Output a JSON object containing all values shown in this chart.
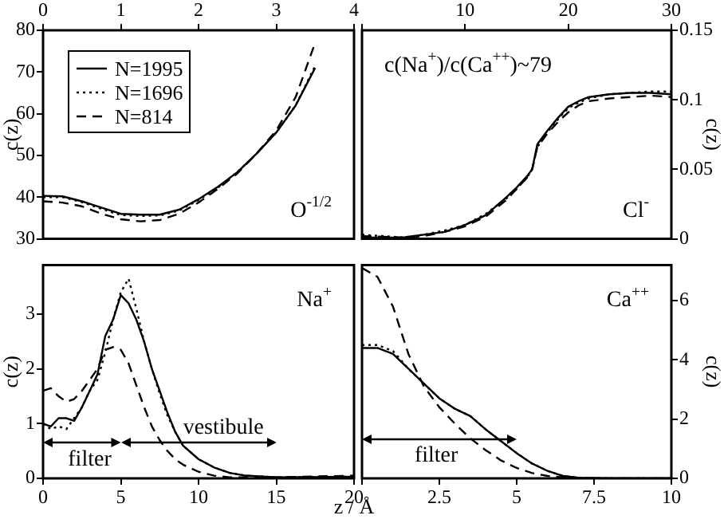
{
  "chart_data": [
    {
      "type": "line",
      "ylabel": "c(z)",
      "xlim": [
        0,
        4
      ],
      "xticks": [
        0,
        1,
        2,
        3,
        4
      ],
      "ylim": [
        30,
        80
      ],
      "yticks": [
        30,
        40,
        50,
        60,
        70,
        80
      ],
      "legend": "top left",
      "grid": false,
      "marker": "none",
      "annotations": [
        "O$^{-1/2}$"
      ],
      "x": [
        0,
        0.25,
        0.5,
        0.75,
        1,
        1.25,
        1.5,
        1.75,
        2,
        2.25,
        2.5,
        2.75,
        3,
        3.25,
        3.5
      ],
      "series": [
        {
          "name": "N=1995",
          "color": "#000000",
          "line_style": "solid",
          "values": [
            40.3,
            40.2,
            39,
            37.5,
            36,
            35.8,
            35.8,
            37,
            39.5,
            42.5,
            46,
            50.5,
            55.5,
            62,
            71
          ]
        },
        {
          "name": "N=1696",
          "color": "#000000",
          "line_style": "dotted",
          "values": [
            40,
            40,
            38.8,
            37.2,
            35.7,
            35.5,
            35.6,
            36.8,
            39.3,
            42.3,
            46,
            50.5,
            55.5,
            62,
            71.5
          ]
        },
        {
          "name": "N=814",
          "color": "#000000",
          "line_style": "dashed",
          "values": [
            39,
            38.7,
            37.8,
            36,
            34.7,
            34.2,
            34.5,
            36,
            38.7,
            42,
            45.7,
            50.5,
            56,
            64,
            77
          ]
        }
      ]
    },
    {
      "type": "line",
      "y2label": "c(z)",
      "xlim": [
        0,
        30
      ],
      "xticks": [
        {
          "value": 0,
          "label": null
        },
        10,
        20,
        30
      ],
      "y2lim": [
        0,
        0.15
      ],
      "y2ticks": [
        0,
        0.05,
        0.1,
        0.15
      ],
      "grid": false,
      "marker": "none",
      "annotations": [
        "c(Na$^{+}$)/c(Ca$^{++}$)~79",
        "Cl$^{-}$"
      ],
      "x": [
        0,
        4,
        6,
        8,
        10,
        12,
        14,
        15,
        16,
        16.5,
        17,
        18,
        19,
        20,
        21,
        22,
        24,
        26,
        28,
        30
      ],
      "series": [
        {
          "color": "#000000",
          "axis": "y2",
          "line_style": "solid",
          "values": [
            0.001,
            0.001,
            0.003,
            0.005,
            0.01,
            0.017,
            0.03,
            0.037,
            0.045,
            0.05,
            0.068,
            0.078,
            0.087,
            0.095,
            0.099,
            0.102,
            0.104,
            0.105,
            0.105,
            0.104
          ]
        },
        {
          "color": "#000000",
          "axis": "y2",
          "line_style": "dotted",
          "values": [
            0.003,
            0.001,
            0.003,
            0.006,
            0.01,
            0.018,
            0.029,
            0.036,
            0.044,
            0.05,
            0.066,
            0.077,
            0.086,
            0.094,
            0.098,
            0.101,
            0.104,
            0.105,
            0.106,
            0.106
          ]
        },
        {
          "color": "#000000",
          "axis": "y2",
          "line_style": "dashed",
          "values": [
            0.002,
            0.001,
            0.002,
            0.005,
            0.009,
            0.016,
            0.028,
            0.036,
            0.044,
            0.05,
            0.066,
            0.076,
            0.084,
            0.091,
            0.096,
            0.099,
            0.101,
            0.102,
            0.103,
            0.102
          ]
        }
      ]
    },
    {
      "type": "line",
      "ylabel": "c(z)",
      "xlabel": "z / Å",
      "xlim": [
        0,
        20
      ],
      "xticks": [
        0,
        5,
        10,
        15,
        20
      ],
      "ylim": [
        0,
        3.9
      ],
      "yticks": [
        0,
        1,
        2,
        3
      ],
      "grid": false,
      "marker": "none",
      "annotations": [
        "Na$^{+}$",
        "filter",
        "vestibule"
      ],
      "x": [
        0,
        0.5,
        1,
        1.5,
        2,
        2.5,
        3,
        3.5,
        4,
        4.5,
        5,
        5.5,
        6,
        6.5,
        7,
        7.5,
        8,
        8.5,
        9,
        10,
        11,
        12,
        13,
        15,
        20
      ],
      "series": [
        {
          "color": "#000000",
          "line_style": "solid",
          "values": [
            1.0,
            0.95,
            1.1,
            1.1,
            1.05,
            1.3,
            1.6,
            1.9,
            2.6,
            2.9,
            3.35,
            3.2,
            2.9,
            2.5,
            2.0,
            1.6,
            1.2,
            0.85,
            0.6,
            0.35,
            0.2,
            0.1,
            0.05,
            0.02,
            0.03
          ]
        },
        {
          "color": "#000000",
          "line_style": "dotted",
          "values": [
            1.0,
            0.9,
            0.95,
            0.9,
            1.1,
            1.3,
            1.6,
            1.8,
            2.3,
            2.9,
            3.4,
            3.65,
            3.1,
            2.5,
            2.0,
            1.55,
            1.15,
            0.85,
            0.6,
            0.35,
            0.2,
            0.1,
            0.05,
            0.02,
            0.03
          ]
        },
        {
          "color": "#000000",
          "line_style": "dashed",
          "values": [
            1.6,
            1.65,
            1.5,
            1.4,
            1.45,
            1.6,
            1.8,
            2.0,
            2.35,
            2.4,
            2.35,
            2.1,
            1.7,
            1.3,
            0.95,
            0.7,
            0.5,
            0.35,
            0.25,
            0.12,
            0.05,
            0.02,
            0.02,
            0.02,
            0.05
          ]
        }
      ]
    },
    {
      "type": "line",
      "y2label": "c(z)",
      "xlim": [
        0,
        10
      ],
      "xticks": [
        {
          "value": 0,
          "label": null
        },
        2.5,
        5,
        7.5,
        10
      ],
      "y2lim": [
        0,
        7.2
      ],
      "y2ticks": [
        0,
        2,
        4,
        6
      ],
      "grid": false,
      "marker": "none",
      "annotations": [
        "Ca$^{++}$",
        "filter"
      ],
      "x": [
        0,
        0.5,
        1,
        1.5,
        2,
        2.5,
        3,
        3.5,
        4,
        4.5,
        5,
        5.5,
        6,
        6.5,
        7,
        8,
        10
      ],
      "series": [
        {
          "color": "#000000",
          "axis": "y2",
          "line_style": "solid",
          "values": [
            4.4,
            4.4,
            4.2,
            3.7,
            3.2,
            2.7,
            2.35,
            2.1,
            1.65,
            1.25,
            0.85,
            0.5,
            0.25,
            0.08,
            0.02,
            0,
            0
          ]
        },
        {
          "color": "#000000",
          "axis": "y2",
          "line_style": "dotted",
          "values": [
            4.5,
            4.5,
            4.3,
            3.7,
            3.2,
            2.7,
            2.35,
            2.1,
            1.65,
            1.25,
            0.85,
            0.5,
            0.25,
            0.08,
            0.02,
            0,
            0
          ]
        },
        {
          "color": "#000000",
          "axis": "y2",
          "line_style": "dashed",
          "values": [
            7.1,
            6.8,
            5.8,
            4.2,
            3.1,
            2.4,
            1.85,
            1.35,
            0.95,
            0.6,
            0.35,
            0.18,
            0.08,
            0.03,
            0,
            0,
            0
          ]
        }
      ]
    }
  ]
}
